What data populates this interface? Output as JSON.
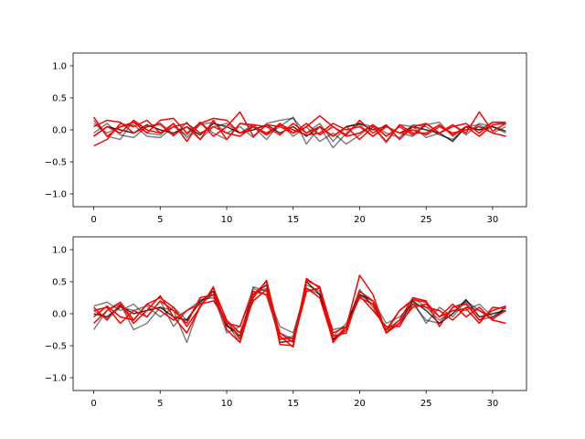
{
  "chart_data": [
    {
      "type": "line",
      "title": "",
      "xlabel": "",
      "ylabel": "",
      "xlim": [
        -1.55,
        32.55
      ],
      "ylim": [
        -1.2,
        1.2
      ],
      "xticks": [
        0,
        5,
        10,
        15,
        20,
        25,
        30
      ],
      "xtick_labels": [
        "0",
        "5",
        "10",
        "15",
        "20",
        "25",
        "30"
      ],
      "yticks": [
        -1.0,
        -0.5,
        0.0,
        0.5,
        1.0
      ],
      "ytick_labels": [
        "−1.0",
        "−0.5",
        "0.0",
        "0.5",
        "1.0"
      ],
      "grid": false,
      "legend": "none",
      "x": [
        0,
        1,
        2,
        3,
        4,
        5,
        6,
        7,
        8,
        9,
        10,
        11,
        12,
        13,
        14,
        15,
        16,
        17,
        18,
        19,
        20,
        21,
        22,
        23,
        24,
        25,
        26,
        27,
        28,
        29,
        30,
        31
      ],
      "series": [
        {
          "color": "#000000",
          "opacity": 0.5,
          "values": [
            0.15,
            -0.1,
            -0.15,
            0.15,
            -0.05,
            -0.08,
            0.1,
            -0.12,
            0.08,
            0.12,
            -0.05,
            0.05,
            -0.12,
            0.1,
            0.15,
            0.18,
            -0.05,
            0.1,
            -0.18,
            0.05,
            0.08,
            -0.1,
            0.06,
            -0.05,
            -0.1,
            0.08,
            0.12,
            -0.1,
            0.05,
            0.0,
            0.12,
            0.1
          ]
        },
        {
          "color": "#000000",
          "opacity": 0.5,
          "values": [
            -0.05,
            0.1,
            -0.08,
            -0.12,
            0.05,
            0.08,
            -0.1,
            0.12,
            -0.15,
            0.05,
            0.1,
            -0.05,
            0.08,
            -0.08,
            0.05,
            0.2,
            -0.22,
            0.05,
            -0.28,
            -0.05,
            0.1,
            0.05,
            -0.2,
            0.08,
            0.05,
            -0.12,
            -0.05,
            0.08,
            -0.08,
            0.1,
            0.05,
            -0.05
          ]
        },
        {
          "color": "#000000",
          "opacity": 0.5,
          "values": [
            0.1,
            -0.05,
            0.05,
            0.08,
            -0.1,
            -0.12,
            0.05,
            -0.08,
            0.12,
            -0.05,
            -0.15,
            0.1,
            0.05,
            -0.15,
            0.1,
            -0.1,
            0.05,
            -0.18,
            -0.05,
            -0.22,
            -0.08,
            0.08,
            -0.05,
            -0.12,
            0.08,
            0.05,
            -0.08,
            -0.15,
            0.05,
            0.08,
            -0.05,
            0.05
          ]
        },
        {
          "color": "#000000",
          "opacity": 0.8,
          "values": [
            -0.1,
            0.05,
            0.0,
            -0.05,
            0.08,
            0.0,
            -0.05,
            0.05,
            -0.08,
            0.1,
            0.05,
            -0.05,
            0.0,
            0.08,
            -0.05,
            0.05,
            -0.1,
            0.05,
            -0.1,
            0.05,
            0.1,
            0.0,
            0.05,
            -0.05,
            0.05,
            0.0,
            -0.05,
            -0.18,
            0.05,
            0.0,
            0.05,
            -0.02
          ]
        },
        {
          "color": "#ff0000",
          "opacity": 1.0,
          "values": [
            0.2,
            -0.1,
            0.05,
            0.12,
            -0.05,
            0.15,
            0.18,
            -0.05,
            0.1,
            0.18,
            0.15,
            -0.05,
            0.05,
            -0.08,
            0.1,
            -0.05,
            0.05,
            0.22,
            0.05,
            -0.08,
            0.15,
            -0.05,
            0.08,
            -0.15,
            0.05,
            0.1,
            -0.05,
            0.08,
            -0.05,
            0.28,
            -0.02,
            0.1
          ]
        },
        {
          "color": "#ff0000",
          "opacity": 1.0,
          "values": [
            -0.25,
            -0.15,
            0.1,
            0.05,
            0.15,
            -0.05,
            0.1,
            -0.18,
            0.12,
            -0.1,
            0.05,
            0.28,
            -0.1,
            0.08,
            0.05,
            -0.05,
            0.1,
            -0.08,
            0.05,
            -0.1,
            -0.05,
            0.08,
            -0.1,
            0.05,
            -0.08,
            0.1,
            -0.05,
            0.05,
            0.1,
            -0.05,
            0.12,
            0.12
          ]
        },
        {
          "color": "#ff0000",
          "opacity": 1.0,
          "values": [
            0.05,
            0.15,
            0.12,
            -0.05,
            0.05,
            0.1,
            -0.08,
            0.05,
            -0.15,
            0.15,
            -0.15,
            0.1,
            0.08,
            0.05,
            -0.08,
            0.1,
            -0.05,
            0.05,
            -0.1,
            0.05,
            -0.15,
            0.05,
            -0.18,
            0.08,
            -0.05,
            -0.05,
            0.08,
            -0.08,
            0.05,
            -0.1,
            0.08,
            0.1
          ]
        },
        {
          "color": "#ff0000",
          "opacity": 1.0,
          "values": [
            -0.1,
            0.05,
            -0.05,
            0.15,
            0.0,
            -0.05,
            0.05,
            0.1,
            -0.05,
            0.05,
            -0.05,
            -0.1,
            0.05,
            -0.05,
            0.08,
            0.0,
            -0.08,
            -0.05,
            0.1,
            0.0,
            0.05,
            -0.1,
            0.05,
            -0.05,
            0.0,
            -0.08,
            0.05,
            -0.05,
            0.0,
            0.05,
            -0.05,
            -0.1
          ]
        }
      ]
    },
    {
      "type": "line",
      "title": "",
      "xlabel": "",
      "ylabel": "",
      "xlim": [
        -1.55,
        32.55
      ],
      "ylim": [
        -1.2,
        1.2
      ],
      "xticks": [
        0,
        5,
        10,
        15,
        20,
        25,
        30
      ],
      "xtick_labels": [
        "0",
        "5",
        "10",
        "15",
        "20",
        "25",
        "30"
      ],
      "yticks": [
        -1.0,
        -0.5,
        0.0,
        0.5,
        1.0
      ],
      "ytick_labels": [
        "−1.0",
        "−0.5",
        "0.0",
        "0.5",
        "1.0"
      ],
      "grid": false,
      "legend": "none",
      "x": [
        0,
        1,
        2,
        3,
        4,
        5,
        6,
        7,
        8,
        9,
        10,
        11,
        12,
        13,
        14,
        15,
        16,
        17,
        18,
        19,
        20,
        21,
        22,
        23,
        24,
        25,
        26,
        27,
        28,
        29,
        30,
        31
      ],
      "series": [
        {
          "color": "#000000",
          "opacity": 0.5,
          "values": [
            -0.25,
            0.05,
            0.15,
            -0.25,
            -0.15,
            0.1,
            0.05,
            -0.45,
            0.15,
            0.3,
            -0.15,
            -0.45,
            0.42,
            0.35,
            -0.2,
            -0.3,
            0.4,
            0.3,
            -0.25,
            -0.2,
            0.35,
            0.2,
            -0.15,
            -0.05,
            0.15,
            -0.1,
            -0.15,
            0.1,
            0.18,
            -0.1,
            -0.05,
            0.1
          ]
        },
        {
          "color": "#000000",
          "opacity": 0.5,
          "values": [
            0.12,
            0.18,
            0.05,
            0.15,
            -0.05,
            0.2,
            -0.2,
            0.05,
            0.2,
            0.3,
            -0.3,
            -0.2,
            0.4,
            0.28,
            -0.4,
            -0.35,
            0.35,
            0.4,
            -0.35,
            -0.15,
            0.3,
            0.15,
            -0.3,
            0.05,
            0.2,
            -0.15,
            0.1,
            -0.05,
            0.2,
            0.05,
            -0.1,
            0.12
          ]
        },
        {
          "color": "#000000",
          "opacity": 0.5,
          "values": [
            0.05,
            -0.08,
            0.1,
            0.05,
            0.12,
            -0.05,
            0.1,
            -0.1,
            0.22,
            0.25,
            -0.2,
            -0.3,
            0.3,
            0.4,
            -0.3,
            -0.4,
            0.45,
            0.35,
            -0.4,
            -0.2,
            0.38,
            0.1,
            -0.25,
            -0.1,
            0.25,
            0.1,
            -0.1,
            0.05,
            0.05,
            0.15,
            -0.05,
            0.05
          ]
        },
        {
          "color": "#000000",
          "opacity": 0.8,
          "values": [
            0.0,
            -0.05,
            0.12,
            0.0,
            0.05,
            0.1,
            -0.05,
            -0.1,
            0.18,
            0.35,
            -0.18,
            -0.35,
            0.3,
            0.45,
            -0.45,
            -0.42,
            0.5,
            0.3,
            -0.4,
            -0.25,
            0.3,
            0.2,
            -0.3,
            -0.15,
            0.2,
            0.05,
            -0.15,
            0.0,
            0.22,
            -0.05,
            0.0,
            0.05
          ]
        },
        {
          "color": "#ff0000",
          "opacity": 1.0,
          "values": [
            0.1,
            -0.1,
            0.15,
            -0.15,
            0.05,
            0.28,
            -0.05,
            -0.3,
            0.1,
            0.4,
            -0.1,
            -0.4,
            0.3,
            0.5,
            -0.48,
            -0.5,
            0.55,
            0.4,
            -0.45,
            -0.2,
            0.6,
            0.3,
            -0.3,
            -0.1,
            0.25,
            0.2,
            -0.2,
            0.1,
            0.15,
            -0.1,
            0.05,
            0.12
          ]
        },
        {
          "color": "#ff0000",
          "opacity": 1.0,
          "values": [
            -0.15,
            0.05,
            0.18,
            -0.1,
            0.15,
            0.25,
            0.1,
            -0.2,
            0.1,
            0.42,
            -0.25,
            -0.45,
            0.25,
            0.52,
            -0.35,
            -0.52,
            0.52,
            0.42,
            -0.3,
            -0.2,
            0.25,
            0.15,
            -0.25,
            0.05,
            0.22,
            0.18,
            -0.05,
            0.15,
            -0.05,
            0.1,
            -0.1,
            -0.15
          ]
        },
        {
          "color": "#ff0000",
          "opacity": 1.0,
          "values": [
            0.05,
            0.1,
            -0.15,
            0.05,
            -0.05,
            0.2,
            0.05,
            -0.15,
            0.25,
            0.3,
            -0.15,
            -0.2,
            0.35,
            0.3,
            -0.3,
            -0.45,
            0.35,
            0.4,
            -0.35,
            -0.3,
            0.35,
            0.2,
            -0.3,
            -0.15,
            0.1,
            0.15,
            -0.05,
            0.05,
            0.08,
            -0.15,
            0.1,
            0.08
          ]
        },
        {
          "color": "#ff0000",
          "opacity": 1.0,
          "values": [
            -0.05,
            0.12,
            -0.05,
            -0.1,
            0.15,
            0.05,
            -0.1,
            0.05,
            0.15,
            0.2,
            -0.1,
            -0.3,
            0.2,
            0.38,
            -0.4,
            -0.38,
            0.4,
            0.25,
            -0.42,
            -0.25,
            0.28,
            0.05,
            -0.2,
            -0.2,
            0.15,
            0.1,
            0.05,
            -0.1,
            0.1,
            0.05,
            -0.08,
            0.05
          ]
        }
      ]
    }
  ]
}
